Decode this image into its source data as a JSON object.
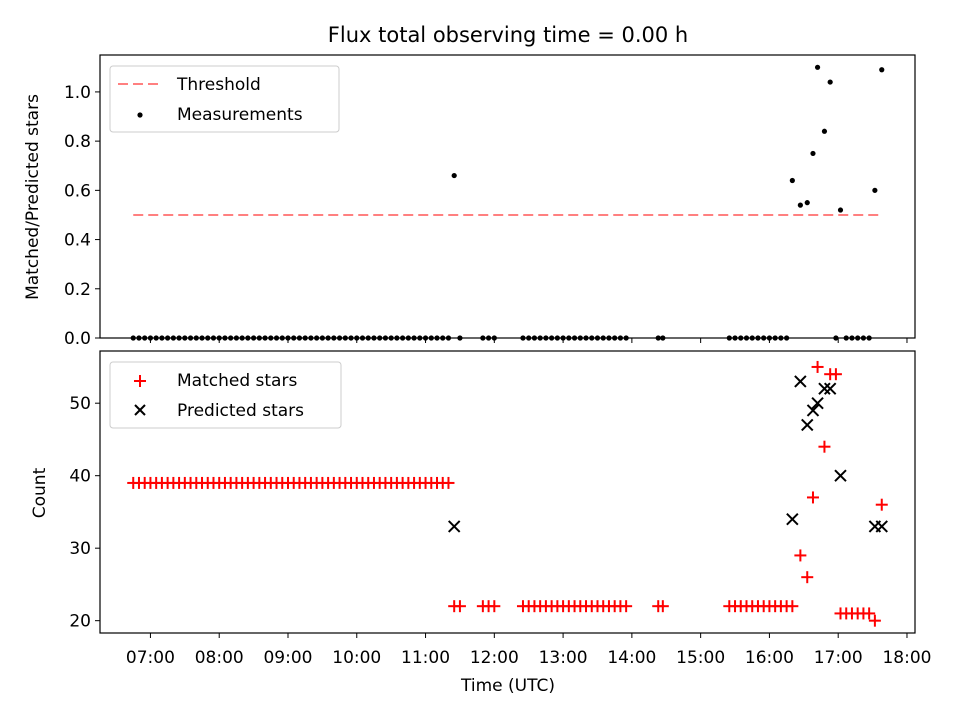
{
  "chart_data": [
    {
      "type": "scatter",
      "title": "Flux total observing time = 0.00 h",
      "xlabel": "",
      "ylabel": "Matched/Predicted stars",
      "xlim": [
        "06:16",
        "18:07"
      ],
      "ylim": [
        0,
        1.15
      ],
      "yticks": [
        "0.0",
        "0.2",
        "0.4",
        "0.6",
        "0.8",
        "1.0"
      ],
      "legend_placement": "top-left",
      "threshold": {
        "name": "Threshold",
        "value": 0.5,
        "x_range": [
          "06:45",
          "17:38"
        ],
        "color": "#ff8080",
        "style": "dashed"
      },
      "series": [
        {
          "name": "Measurements",
          "color": "#000000",
          "marker": "dot",
          "points": [
            [
              "06:45",
              0
            ],
            [
              "06:50",
              0
            ],
            [
              "06:55",
              0
            ],
            [
              "07:00",
              0
            ],
            [
              "07:05",
              0
            ],
            [
              "07:10",
              0
            ],
            [
              "07:15",
              0
            ],
            [
              "07:20",
              0
            ],
            [
              "07:25",
              0
            ],
            [
              "07:30",
              0
            ],
            [
              "07:35",
              0
            ],
            [
              "07:40",
              0
            ],
            [
              "07:45",
              0
            ],
            [
              "07:50",
              0
            ],
            [
              "07:55",
              0
            ],
            [
              "08:00",
              0
            ],
            [
              "08:05",
              0
            ],
            [
              "08:10",
              0
            ],
            [
              "08:15",
              0
            ],
            [
              "08:20",
              0
            ],
            [
              "08:25",
              0
            ],
            [
              "08:30",
              0
            ],
            [
              "08:35",
              0
            ],
            [
              "08:40",
              0
            ],
            [
              "08:45",
              0
            ],
            [
              "08:50",
              0
            ],
            [
              "08:55",
              0
            ],
            [
              "09:00",
              0
            ],
            [
              "09:05",
              0
            ],
            [
              "09:10",
              0
            ],
            [
              "09:15",
              0
            ],
            [
              "09:20",
              0
            ],
            [
              "09:25",
              0
            ],
            [
              "09:30",
              0
            ],
            [
              "09:35",
              0
            ],
            [
              "09:40",
              0
            ],
            [
              "09:45",
              0
            ],
            [
              "09:50",
              0
            ],
            [
              "09:55",
              0
            ],
            [
              "10:00",
              0
            ],
            [
              "10:05",
              0
            ],
            [
              "10:10",
              0
            ],
            [
              "10:15",
              0
            ],
            [
              "10:20",
              0
            ],
            [
              "10:25",
              0
            ],
            [
              "10:30",
              0
            ],
            [
              "10:35",
              0
            ],
            [
              "10:40",
              0
            ],
            [
              "10:45",
              0
            ],
            [
              "10:50",
              0
            ],
            [
              "10:55",
              0
            ],
            [
              "11:00",
              0
            ],
            [
              "11:05",
              0
            ],
            [
              "11:10",
              0
            ],
            [
              "11:15",
              0
            ],
            [
              "11:20",
              0
            ],
            [
              "11:25",
              0.66
            ],
            [
              "11:30",
              0
            ],
            [
              "11:50",
              0
            ],
            [
              "11:55",
              0
            ],
            [
              "12:00",
              0
            ],
            [
              "12:25",
              0
            ],
            [
              "12:30",
              0
            ],
            [
              "12:35",
              0
            ],
            [
              "12:40",
              0
            ],
            [
              "12:45",
              0
            ],
            [
              "12:50",
              0
            ],
            [
              "12:55",
              0
            ],
            [
              "13:00",
              0
            ],
            [
              "13:05",
              0
            ],
            [
              "13:10",
              0
            ],
            [
              "13:15",
              0
            ],
            [
              "13:20",
              0
            ],
            [
              "13:25",
              0
            ],
            [
              "13:30",
              0
            ],
            [
              "13:35",
              0
            ],
            [
              "13:40",
              0
            ],
            [
              "13:45",
              0
            ],
            [
              "13:50",
              0
            ],
            [
              "13:55",
              0
            ],
            [
              "14:23",
              0
            ],
            [
              "14:27",
              0
            ],
            [
              "15:25",
              0
            ],
            [
              "15:30",
              0
            ],
            [
              "15:35",
              0
            ],
            [
              "15:40",
              0
            ],
            [
              "15:45",
              0
            ],
            [
              "15:50",
              0
            ],
            [
              "15:55",
              0
            ],
            [
              "16:00",
              0
            ],
            [
              "16:05",
              0
            ],
            [
              "16:10",
              0
            ],
            [
              "16:15",
              0
            ],
            [
              "16:20",
              0.64
            ],
            [
              "16:27",
              0.54
            ],
            [
              "16:33",
              0.55
            ],
            [
              "16:38",
              0.75
            ],
            [
              "16:42",
              1.1
            ],
            [
              "16:48",
              0.84
            ],
            [
              "16:53",
              1.04
            ],
            [
              "16:58",
              0
            ],
            [
              "17:02",
              0.52
            ],
            [
              "17:07",
              0
            ],
            [
              "17:12",
              0
            ],
            [
              "17:17",
              0
            ],
            [
              "17:22",
              0
            ],
            [
              "17:27",
              0
            ],
            [
              "17:32",
              0.6
            ],
            [
              "17:38",
              1.09
            ]
          ]
        }
      ]
    },
    {
      "type": "scatter",
      "title": "",
      "xlabel": "Time (UTC)",
      "ylabel": "Count",
      "xlim": [
        "06:16",
        "18:07"
      ],
      "ylim": [
        18.3,
        57.2
      ],
      "yticks": [
        "20",
        "30",
        "40",
        "50"
      ],
      "xticks": [
        "07:00",
        "08:00",
        "09:00",
        "10:00",
        "11:00",
        "12:00",
        "13:00",
        "14:00",
        "15:00",
        "16:00",
        "17:00",
        "18:00"
      ],
      "legend_placement": "top-left",
      "series": [
        {
          "name": "Matched stars",
          "color": "#ff0000",
          "marker": "plus",
          "points": [
            [
              "06:45",
              39
            ],
            [
              "06:50",
              39
            ],
            [
              "06:55",
              39
            ],
            [
              "07:00",
              39
            ],
            [
              "07:05",
              39
            ],
            [
              "07:10",
              39
            ],
            [
              "07:15",
              39
            ],
            [
              "07:20",
              39
            ],
            [
              "07:25",
              39
            ],
            [
              "07:30",
              39
            ],
            [
              "07:35",
              39
            ],
            [
              "07:40",
              39
            ],
            [
              "07:45",
              39
            ],
            [
              "07:50",
              39
            ],
            [
              "07:55",
              39
            ],
            [
              "08:00",
              39
            ],
            [
              "08:05",
              39
            ],
            [
              "08:10",
              39
            ],
            [
              "08:15",
              39
            ],
            [
              "08:20",
              39
            ],
            [
              "08:25",
              39
            ],
            [
              "08:30",
              39
            ],
            [
              "08:35",
              39
            ],
            [
              "08:40",
              39
            ],
            [
              "08:45",
              39
            ],
            [
              "08:50",
              39
            ],
            [
              "08:55",
              39
            ],
            [
              "09:00",
              39
            ],
            [
              "09:05",
              39
            ],
            [
              "09:10",
              39
            ],
            [
              "09:15",
              39
            ],
            [
              "09:20",
              39
            ],
            [
              "09:25",
              39
            ],
            [
              "09:30",
              39
            ],
            [
              "09:35",
              39
            ],
            [
              "09:40",
              39
            ],
            [
              "09:45",
              39
            ],
            [
              "09:50",
              39
            ],
            [
              "09:55",
              39
            ],
            [
              "10:00",
              39
            ],
            [
              "10:05",
              39
            ],
            [
              "10:10",
              39
            ],
            [
              "10:15",
              39
            ],
            [
              "10:20",
              39
            ],
            [
              "10:25",
              39
            ],
            [
              "10:30",
              39
            ],
            [
              "10:35",
              39
            ],
            [
              "10:40",
              39
            ],
            [
              "10:45",
              39
            ],
            [
              "10:50",
              39
            ],
            [
              "10:55",
              39
            ],
            [
              "11:00",
              39
            ],
            [
              "11:05",
              39
            ],
            [
              "11:10",
              39
            ],
            [
              "11:15",
              39
            ],
            [
              "11:20",
              39
            ],
            [
              "11:25",
              22
            ],
            [
              "11:30",
              22
            ],
            [
              "11:50",
              22
            ],
            [
              "11:55",
              22
            ],
            [
              "12:00",
              22
            ],
            [
              "12:25",
              22
            ],
            [
              "12:30",
              22
            ],
            [
              "12:35",
              22
            ],
            [
              "12:40",
              22
            ],
            [
              "12:45",
              22
            ],
            [
              "12:50",
              22
            ],
            [
              "12:55",
              22
            ],
            [
              "13:00",
              22
            ],
            [
              "13:05",
              22
            ],
            [
              "13:10",
              22
            ],
            [
              "13:15",
              22
            ],
            [
              "13:20",
              22
            ],
            [
              "13:25",
              22
            ],
            [
              "13:30",
              22
            ],
            [
              "13:35",
              22
            ],
            [
              "13:40",
              22
            ],
            [
              "13:45",
              22
            ],
            [
              "13:50",
              22
            ],
            [
              "13:55",
              22
            ],
            [
              "14:23",
              22
            ],
            [
              "14:27",
              22
            ],
            [
              "15:25",
              22
            ],
            [
              "15:30",
              22
            ],
            [
              "15:35",
              22
            ],
            [
              "15:40",
              22
            ],
            [
              "15:45",
              22
            ],
            [
              "15:50",
              22
            ],
            [
              "15:55",
              22
            ],
            [
              "16:00",
              22
            ],
            [
              "16:05",
              22
            ],
            [
              "16:10",
              22
            ],
            [
              "16:15",
              22
            ],
            [
              "16:20",
              22
            ],
            [
              "16:27",
              29
            ],
            [
              "16:33",
              26
            ],
            [
              "16:38",
              37
            ],
            [
              "16:42",
              55
            ],
            [
              "16:48",
              44
            ],
            [
              "16:53",
              54
            ],
            [
              "16:58",
              54
            ],
            [
              "17:02",
              21
            ],
            [
              "17:07",
              21
            ],
            [
              "17:12",
              21
            ],
            [
              "17:17",
              21
            ],
            [
              "17:22",
              21
            ],
            [
              "17:27",
              21
            ],
            [
              "17:32",
              20
            ],
            [
              "17:38",
              36
            ]
          ]
        },
        {
          "name": "Predicted stars",
          "color": "#000000",
          "marker": "x",
          "points": [
            [
              "11:25",
              33
            ],
            [
              "16:20",
              34
            ],
            [
              "16:27",
              53
            ],
            [
              "16:33",
              47
            ],
            [
              "16:38",
              49
            ],
            [
              "16:42",
              50
            ],
            [
              "16:48",
              52
            ],
            [
              "16:53",
              52
            ],
            [
              "17:02",
              40
            ],
            [
              "17:32",
              33
            ],
            [
              "17:38",
              33
            ]
          ]
        }
      ]
    }
  ]
}
